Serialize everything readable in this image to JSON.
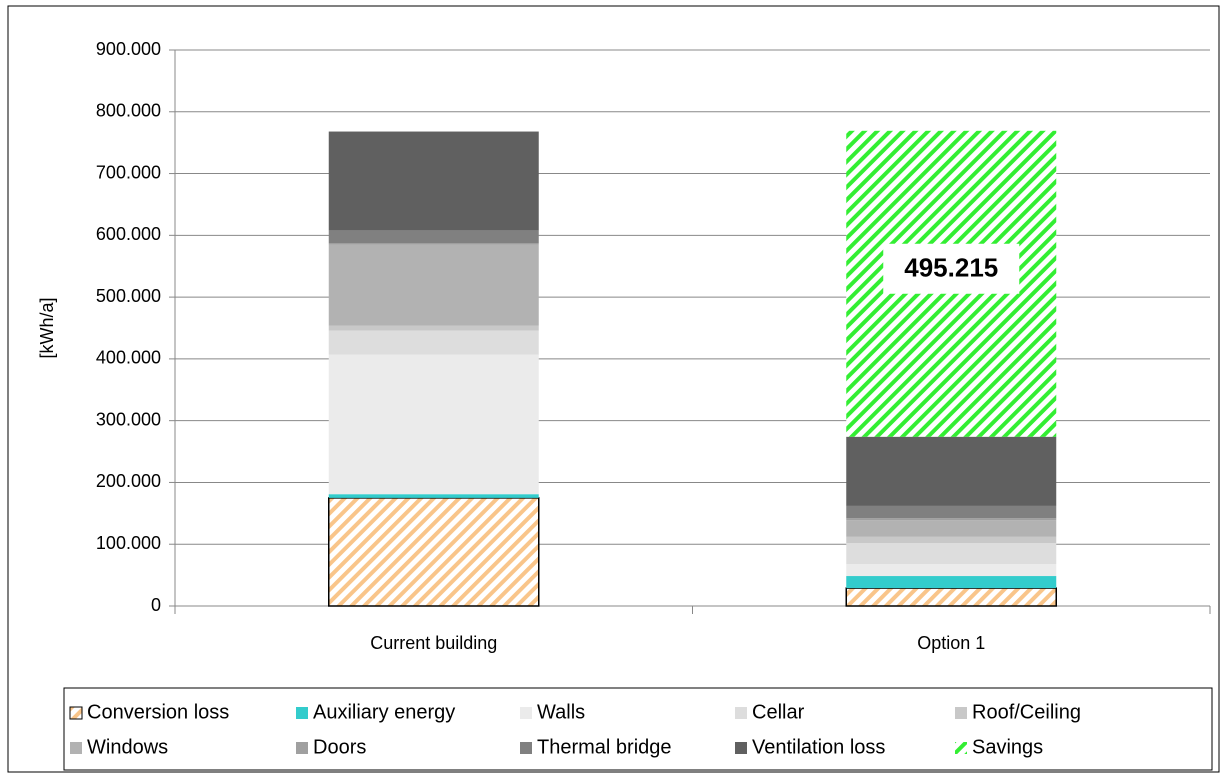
{
  "chart_data": {
    "type": "bar",
    "stacked": true,
    "ylabel": "[kWh/a]",
    "categories": [
      "Current building",
      "Option 1"
    ],
    "ylim": [
      0,
      900000
    ],
    "yticks": [
      0,
      {
        "value": 100000,
        "label": "100.000"
      },
      {
        "value": 200000,
        "label": "200.000"
      },
      {
        "value": 300000,
        "label": "300.000"
      },
      {
        "value": 400000,
        "label": "400.000"
      },
      {
        "value": 500000,
        "label": "500.000"
      },
      {
        "value": 600000,
        "label": "600.000"
      },
      {
        "value": 700000,
        "label": "700.000"
      },
      {
        "value": 800000,
        "label": "800.000"
      },
      {
        "value": 900000,
        "label": "900.000"
      }
    ],
    "grid": true,
    "legend": "bottom",
    "series": [
      {
        "name": "Conversion loss",
        "color": "#f9c58a",
        "hatch": true,
        "values": [
          175000,
          29000
        ]
      },
      {
        "name": "Auxiliary energy",
        "color": "#33cccc",
        "values": [
          6000,
          19500
        ]
      },
      {
        "name": "Walls",
        "color": "#ebebeb",
        "values": [
          226000,
          19500
        ]
      },
      {
        "name": "Cellar",
        "color": "#dddddd",
        "values": [
          39000,
          34000
        ]
      },
      {
        "name": "Roof/Ceiling",
        "color": "#c8c8c8",
        "values": [
          8000,
          10000
        ]
      },
      {
        "name": "Windows",
        "color": "#b2b2b2",
        "values": [
          131000,
          27000
        ]
      },
      {
        "name": "Doors",
        "color": "#a0a0a0",
        "values": [
          2000,
          3000
        ]
      },
      {
        "name": "Thermal bridge",
        "color": "#808080",
        "values": [
          21000,
          20000
        ]
      },
      {
        "name": "Ventilation loss",
        "color": "#606060",
        "values": [
          160000,
          112000
        ]
      },
      {
        "name": "Savings",
        "color": "#33ee33",
        "hatch": true,
        "values": [
          null,
          495215
        ],
        "value_labels": [
          null,
          "495.215"
        ]
      }
    ]
  }
}
